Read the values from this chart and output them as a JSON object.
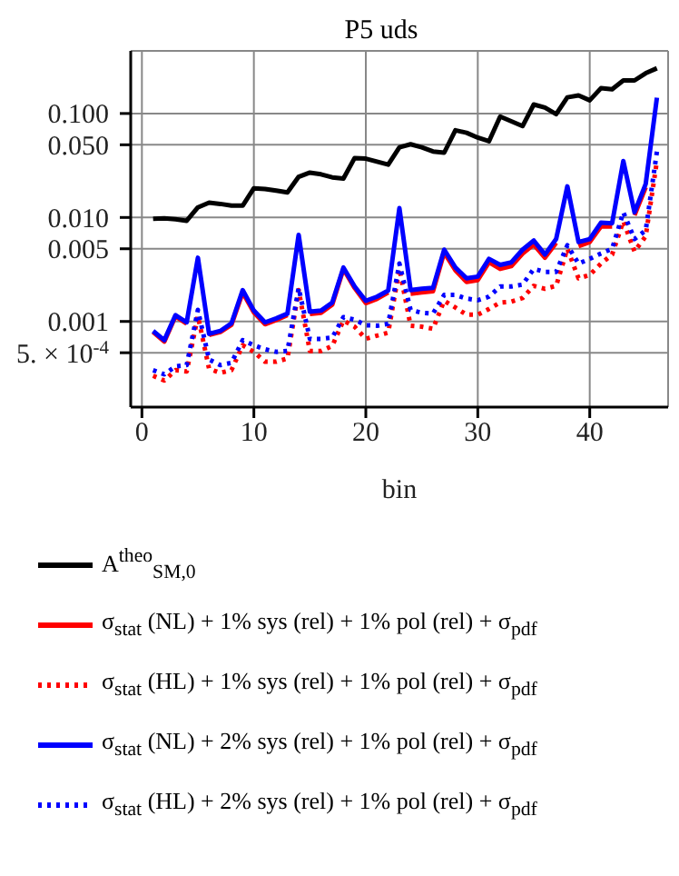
{
  "chart_data": {
    "type": "line",
    "title": "P5 uds",
    "xlabel": "bin",
    "x": [
      1,
      2,
      3,
      4,
      5,
      6,
      7,
      8,
      9,
      10,
      11,
      12,
      13,
      14,
      15,
      16,
      17,
      18,
      19,
      20,
      21,
      22,
      23,
      24,
      25,
      26,
      27,
      28,
      29,
      30,
      31,
      32,
      33,
      34,
      35,
      36,
      37,
      38,
      39,
      40,
      41,
      42,
      43,
      44,
      45,
      46
    ],
    "series": [
      {
        "name": "A$^{theo}$$_{SM,0}$",
        "color": "#000000",
        "line_style": "solid",
        "values": [
          0.0097,
          0.0098,
          0.0096,
          0.0093,
          0.0125,
          0.0139,
          0.0135,
          0.013,
          0.013,
          0.0191,
          0.0188,
          0.0181,
          0.0174,
          0.0246,
          0.027,
          0.026,
          0.0243,
          0.0237,
          0.0373,
          0.0368,
          0.0344,
          0.0322,
          0.0473,
          0.0506,
          0.0473,
          0.0431,
          0.042,
          0.0689,
          0.0652,
          0.0586,
          0.0541,
          0.0935,
          0.0841,
          0.0756,
          0.122,
          0.114,
          0.0987,
          0.143,
          0.149,
          0.134,
          0.175,
          0.171,
          0.208,
          0.208,
          0.244,
          0.272
        ]
      },
      {
        "name": "σ$_{stat}$ (NL) + 1% sys (rel) + 1% pol (rel) + σ$_{pdf}$",
        "color": "#ff0000",
        "line_style": "solid",
        "values": [
          0.00079,
          0.00064,
          0.00112,
          0.00095,
          null,
          0.00074,
          0.00079,
          0.00093,
          0.0019,
          0.00122,
          0.00094,
          0.00103,
          0.00115,
          null,
          0.00118,
          0.00121,
          0.00145,
          0.0032,
          0.0021,
          0.0015,
          0.00165,
          0.0019,
          null,
          0.00185,
          0.0019,
          0.00195,
          0.0046,
          0.0031,
          0.0024,
          0.0025,
          0.0037,
          0.0032,
          0.0034,
          0.0045,
          0.0055,
          0.0041,
          0.0057,
          null,
          0.0053,
          0.0058,
          0.0082,
          0.0082,
          null,
          0.0105,
          0.0195,
          null
        ]
      },
      {
        "name": "σ$_{stat}$ (HL) + 1% sys (rel) + 1% pol (rel) + σ$_{pdf}$",
        "color": "#ff0000",
        "line_style": "dotted",
        "values": [
          0.0003,
          0.00027,
          0.00034,
          0.00033,
          0.00113,
          0.00035,
          0.00032,
          0.00034,
          0.00059,
          0.00051,
          0.00041,
          0.00041,
          0.00044,
          0.002,
          0.00052,
          0.00052,
          0.00058,
          0.00102,
          0.00089,
          0.00068,
          0.00073,
          0.00078,
          0.0032,
          0.00091,
          0.00089,
          0.00085,
          0.00158,
          0.00136,
          0.00116,
          0.00116,
          0.00132,
          0.00152,
          0.00155,
          0.00168,
          0.0022,
          0.00206,
          0.0022,
          0.005,
          0.0026,
          0.0028,
          0.0036,
          0.0044,
          0.0092,
          0.0047,
          0.0066,
          0.0349
        ]
      },
      {
        "name": "σ$_{stat}$ (NL) + 2% sys (rel) + 1% pol (rel) + σ$_{pdf}$",
        "color": "#0000ff",
        "line_style": "solid",
        "values": [
          0.00081,
          0.00066,
          0.00115,
          0.00098,
          0.0041,
          0.00076,
          0.00081,
          0.00096,
          0.002,
          0.00127,
          0.00098,
          0.00107,
          0.00119,
          0.0068,
          0.00124,
          0.00127,
          0.00152,
          0.0033,
          0.00217,
          0.00158,
          0.00173,
          0.00198,
          0.0123,
          0.002,
          0.00206,
          0.0021,
          0.0049,
          0.0033,
          0.0026,
          0.0027,
          0.004,
          0.0035,
          0.0037,
          0.0049,
          0.006,
          0.0044,
          0.0062,
          0.0199,
          0.0058,
          0.0062,
          0.0089,
          0.0088,
          0.0349,
          0.0112,
          0.021,
          0.142
        ]
      },
      {
        "name": "σ$_{stat}$ (HL) + 2% sys (rel) + 1% pol (rel) + σ$_{pdf}$",
        "color": "#0000ff",
        "line_style": "dotted",
        "values": [
          0.00034,
          0.00031,
          0.00037,
          0.00038,
          0.00129,
          0.00043,
          0.00038,
          0.0004,
          0.00066,
          0.00059,
          0.00054,
          0.00051,
          0.00052,
          0.0021,
          0.00068,
          0.00068,
          0.0007,
          0.0011,
          0.00104,
          0.00092,
          0.00091,
          0.00095,
          0.0036,
          0.00129,
          0.00121,
          0.00119,
          0.0018,
          0.0018,
          0.00166,
          0.0016,
          0.00173,
          0.00217,
          0.00217,
          0.00226,
          0.0032,
          0.003,
          0.003,
          0.0054,
          0.0036,
          0.004,
          0.0045,
          0.005,
          0.0112,
          0.0062,
          0.0075,
          0.043
        ]
      }
    ],
    "log": "y",
    "xlim": [
      -1,
      47
    ],
    "ylim": [
      0.00015,
      0.4
    ],
    "xticks": [
      0,
      10,
      20,
      30,
      40
    ],
    "yticks": [
      {
        "value": 0.0005,
        "label": "5. × 10$^{-4}$"
      },
      {
        "value": 0.001,
        "label": "0.001"
      },
      {
        "value": 0.005,
        "label": "0.005"
      },
      {
        "value": 0.01,
        "label": "0.010"
      },
      {
        "value": 0.05,
        "label": "0.050"
      },
      {
        "value": 0.1,
        "label": "0.100"
      }
    ],
    "grid": true,
    "legend": "bottom"
  }
}
